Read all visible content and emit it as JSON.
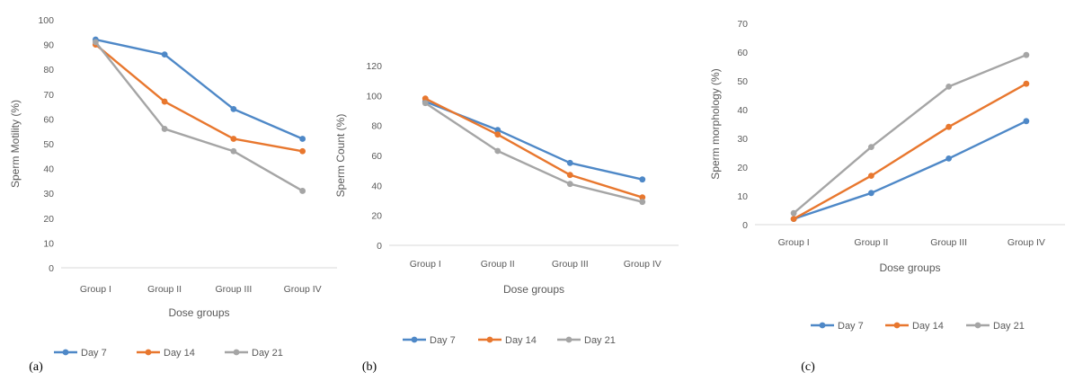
{
  "colors": {
    "series": [
      "#4e88c7",
      "#e8772e",
      "#a5a5a5"
    ],
    "axis": "#d9d9d9",
    "text": "#595959"
  },
  "chart_data": [
    {
      "type": "line",
      "panel_label": "(a)",
      "categories": [
        "Group I",
        "Group II",
        "Group III",
        "Group IV"
      ],
      "xlabel": "Dose groups",
      "ylabel": "Sperm Motility (%)",
      "ylim": [
        0,
        100
      ],
      "yticks": [
        0,
        10,
        20,
        30,
        40,
        50,
        60,
        70,
        80,
        90,
        100
      ],
      "legend_position": "bottom",
      "grid": false,
      "series": [
        {
          "name": "Day 7",
          "values": [
            92,
            86,
            64,
            52
          ]
        },
        {
          "name": "Day 14",
          "values": [
            90,
            67,
            52,
            47
          ]
        },
        {
          "name": "Day 21",
          "values": [
            91,
            56,
            47,
            31
          ]
        }
      ]
    },
    {
      "type": "line",
      "panel_label": "(b)",
      "categories": [
        "Group I",
        "Group II",
        "Group III",
        "Group IV"
      ],
      "xlabel": "Dose groups",
      "ylabel": "Sperm Count (%)",
      "ylim": [
        0,
        120
      ],
      "yticks": [
        0,
        20,
        40,
        60,
        80,
        100,
        120
      ],
      "legend_position": "bottom",
      "grid": false,
      "series": [
        {
          "name": "Day 7",
          "values": [
            96,
            77,
            55,
            44
          ]
        },
        {
          "name": "Day 14",
          "values": [
            98,
            74,
            47,
            32
          ]
        },
        {
          "name": "Day 21",
          "values": [
            95,
            63,
            41,
            29
          ]
        }
      ]
    },
    {
      "type": "line",
      "panel_label": "(c)",
      "categories": [
        "Group I",
        "Group II",
        "Group III",
        "Group IV"
      ],
      "xlabel": "Dose groups",
      "ylabel": "Sperm morphology (%)",
      "ylim": [
        0,
        70
      ],
      "yticks": [
        0,
        10,
        20,
        30,
        40,
        50,
        60,
        70
      ],
      "legend_position": "bottom",
      "grid": false,
      "series": [
        {
          "name": "Day 7",
          "values": [
            2,
            11,
            23,
            36
          ]
        },
        {
          "name": "Day 14",
          "values": [
            2,
            17,
            34,
            49
          ]
        },
        {
          "name": "Day 21",
          "values": [
            4,
            27,
            48,
            59
          ]
        }
      ]
    }
  ]
}
